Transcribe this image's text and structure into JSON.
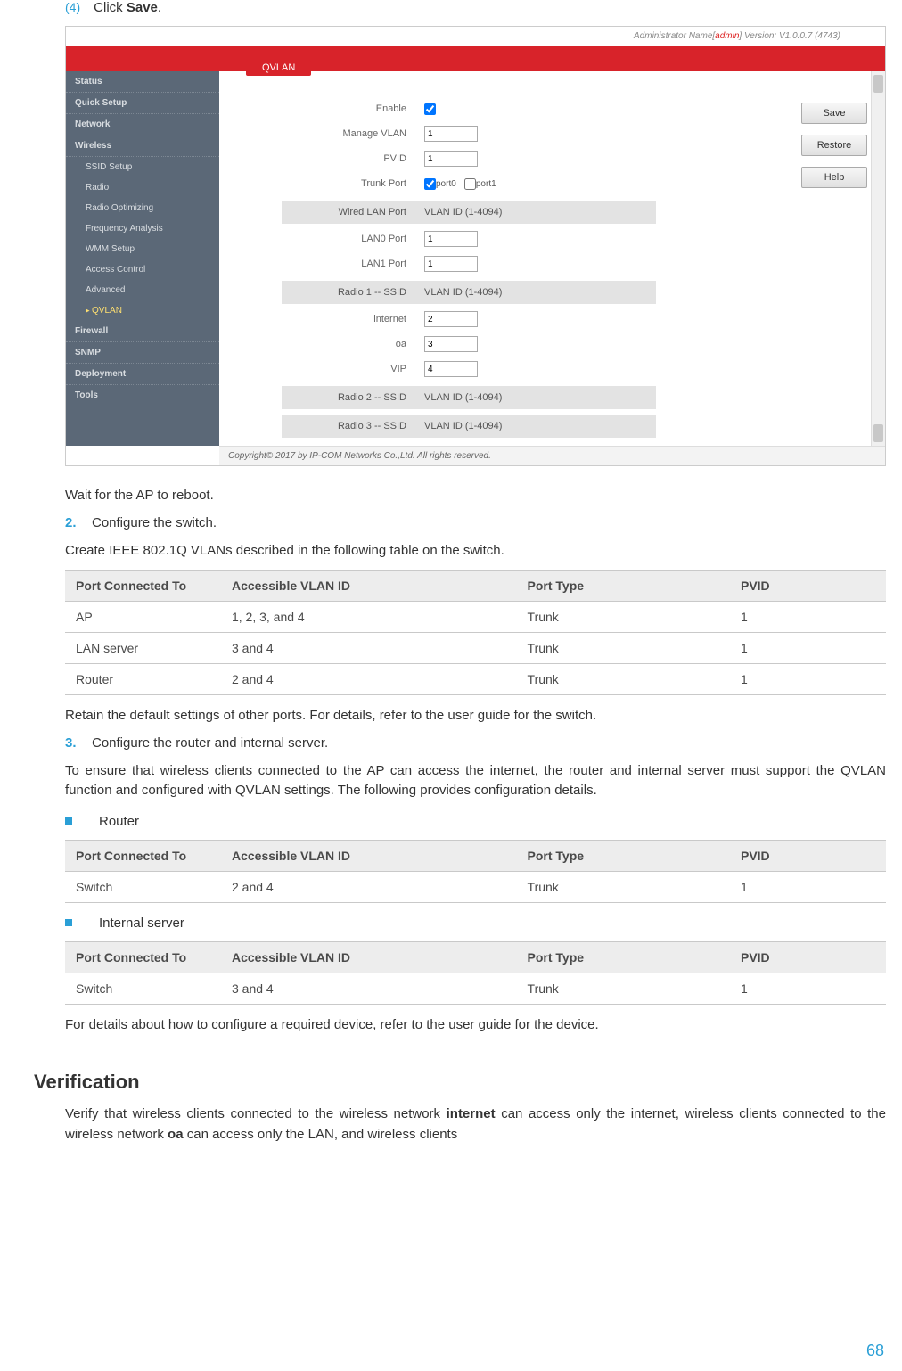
{
  "step4": {
    "marker": "(4)",
    "text_pre": "Click ",
    "bold": "Save",
    "text_post": "."
  },
  "screenshot": {
    "admin_prefix": "Administrator Name[",
    "admin_name": "admin",
    "admin_suffix": "] Version: V1.0.0.7 (4743)",
    "tab_label": "QVLAN",
    "sidebar": [
      {
        "label": "Status",
        "sub": false
      },
      {
        "label": "Quick Setup",
        "sub": false
      },
      {
        "label": "Network",
        "sub": false
      },
      {
        "label": "Wireless",
        "sub": false
      },
      {
        "label": "SSID Setup",
        "sub": true
      },
      {
        "label": "Radio",
        "sub": true
      },
      {
        "label": "Radio Optimizing",
        "sub": true
      },
      {
        "label": "Frequency Analysis",
        "sub": true
      },
      {
        "label": "WMM Setup",
        "sub": true
      },
      {
        "label": "Access Control",
        "sub": true
      },
      {
        "label": "Advanced",
        "sub": true
      },
      {
        "label": "QVLAN",
        "sub": true,
        "selected": true
      },
      {
        "label": "Firewall",
        "sub": false
      },
      {
        "label": "SNMP",
        "sub": false
      },
      {
        "label": "Deployment",
        "sub": false
      },
      {
        "label": "Tools",
        "sub": false
      }
    ],
    "buttons": {
      "save": "Save",
      "restore": "Restore",
      "help": "Help"
    },
    "fields": {
      "enable_label": "Enable",
      "manage_vlan_label": "Manage VLAN",
      "manage_vlan_value": "1",
      "pvid_label": "PVID",
      "pvid_value": "1",
      "trunk_label": "Trunk Port",
      "trunk_port0": "port0",
      "trunk_port1": "port1",
      "wired_section_l": "Wired LAN Port",
      "wired_section_r": "VLAN ID (1-4094)",
      "lan0_label": "LAN0 Port",
      "lan0_value": "1",
      "lan1_label": "LAN1 Port",
      "lan1_value": "1",
      "radio1_section_l": "Radio 1 -- SSID",
      "radio1_section_r": "VLAN ID (1-4094)",
      "internet_label": "internet",
      "internet_value": "2",
      "oa_label": "oa",
      "oa_value": "3",
      "vip_label": "VIP",
      "vip_value": "4",
      "radio2_section_l": "Radio 2 -- SSID",
      "radio2_section_r": "VLAN ID (1-4094)",
      "radio3_section_l": "Radio 3 -- SSID",
      "radio3_section_r": "VLAN ID (1-4094)"
    },
    "copyright": "Copyright© 2017 by IP-COM Networks Co.,Ltd. All rights reserved."
  },
  "after_shot": {
    "wait": "Wait for the AP to reboot.",
    "step2_num": "2.",
    "step2_text": "Configure the switch.",
    "create_text": "Create IEEE 802.1Q VLANs described in the following table on the switch."
  },
  "table_hdr": {
    "c1": "Port Connected To",
    "c2": "Accessible VLAN ID",
    "c3": "Port Type",
    "c4": "PVID"
  },
  "switch_table": [
    {
      "c1": "AP",
      "c2": "1, 2, 3, and 4",
      "c3": "Trunk",
      "c4": "1"
    },
    {
      "c1": "LAN server",
      "c2": "3 and 4",
      "c3": "Trunk",
      "c4": "1"
    },
    {
      "c1": "Router",
      "c2": "2 and 4",
      "c3": "Trunk",
      "c4": "1"
    }
  ],
  "after_switch": {
    "retain": "Retain the default settings of other ports. For details, refer to the user guide for the switch.",
    "step3_num": "3.",
    "step3_text": "Configure the router and internal server.",
    "ensure": "To ensure that wireless clients connected to the AP can access the internet, the router and internal server must support the QVLAN function and configured with QVLAN settings. The following provides configuration details."
  },
  "router_label": "Router",
  "router_table": [
    {
      "c1": "Switch",
      "c2": "2 and 4",
      "c3": "Trunk",
      "c4": "1"
    }
  ],
  "internal_label": "Internal server",
  "internal_table": [
    {
      "c1": "Switch",
      "c2": "3 and 4",
      "c3": "Trunk",
      "c4": "1"
    }
  ],
  "details_para": "For details about how to configure a required device, refer to the user guide for the device.",
  "verification": {
    "heading": "Verification",
    "para_parts": [
      "Verify that wireless clients connected to the wireless network ",
      "internet",
      " can access only the internet, wireless clients connected to the wireless network ",
      "oa",
      " can access only the LAN, and wireless clients"
    ]
  },
  "page_number": "68"
}
